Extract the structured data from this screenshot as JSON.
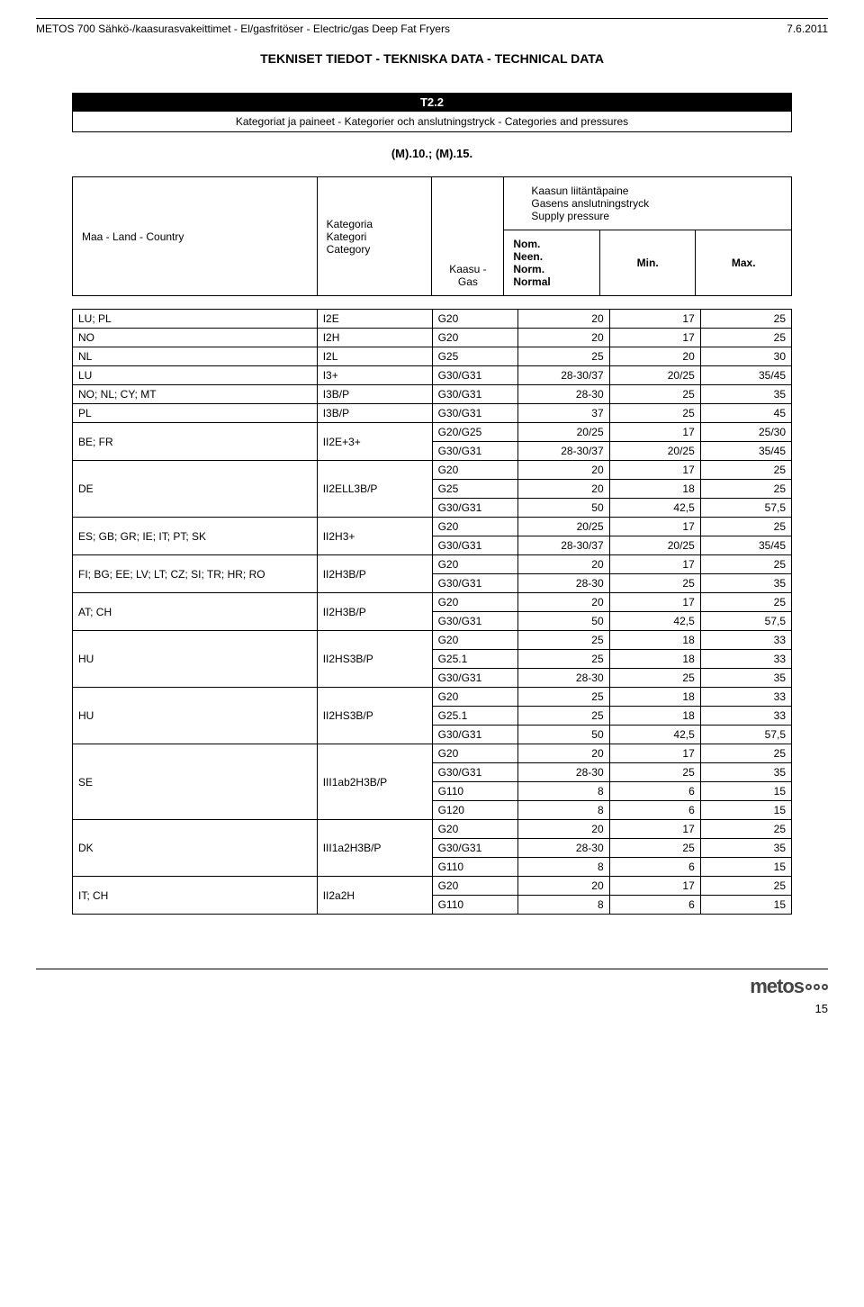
{
  "header": {
    "left": "METOS 700 Sähkö-/kaasurasvakeittimet - El/gasfritöser - Electric/gas Deep Fat Fryers",
    "right": "7.6.2011"
  },
  "section_title": "TEKNISET TIEDOT - TEKNISKA DATA - TECHNICAL DATA",
  "table_heading": {
    "code": "T2.2",
    "subtitle": "Kategoriat ja paineet - Kategorier och anslutningstryck - Categories and pressures"
  },
  "model_label": "(M).10.; (M).15.",
  "col_headers": {
    "country": "Maa - Land - Country",
    "category_lines": [
      "Kategoria",
      "Kategori",
      "Category"
    ],
    "gas_lines": [
      "Kaasu -",
      "Gas"
    ],
    "pressure_lines": [
      "Kaasun liitäntäpaine",
      "Gasens anslutningstryck",
      "Supply pressure"
    ],
    "nom_lines": [
      "Nom.",
      "Neen.",
      "Norm.",
      "Normal"
    ],
    "min": "Min.",
    "max": "Max."
  },
  "rows": [
    {
      "country": "LU; PL",
      "cat": "I2E",
      "gases": [
        [
          "G20",
          "20",
          "17",
          "25"
        ]
      ]
    },
    {
      "country": "NO",
      "cat": "I2H",
      "gases": [
        [
          "G20",
          "20",
          "17",
          "25"
        ]
      ]
    },
    {
      "country": "NL",
      "cat": "I2L",
      "gases": [
        [
          "G25",
          "25",
          "20",
          "30"
        ]
      ]
    },
    {
      "country": "LU",
      "cat": "I3+",
      "gases": [
        [
          "G30/G31",
          "28-30/37",
          "20/25",
          "35/45"
        ]
      ]
    },
    {
      "country": "NO; NL; CY; MT",
      "cat": "I3B/P",
      "gases": [
        [
          "G30/G31",
          "28-30",
          "25",
          "35"
        ]
      ]
    },
    {
      "country": "PL",
      "cat": "I3B/P",
      "gases": [
        [
          "G30/G31",
          "37",
          "25",
          "45"
        ]
      ]
    },
    {
      "country": "BE; FR",
      "cat": "II2E+3+",
      "gases": [
        [
          "G20/G25",
          "20/25",
          "17",
          "25/30"
        ],
        [
          "G30/G31",
          "28-30/37",
          "20/25",
          "35/45"
        ]
      ]
    },
    {
      "country": "DE",
      "cat": "II2ELL3B/P",
      "gases": [
        [
          "G20",
          "20",
          "17",
          "25"
        ],
        [
          "G25",
          "20",
          "18",
          "25"
        ],
        [
          "G30/G31",
          "50",
          "42,5",
          "57,5"
        ]
      ]
    },
    {
      "country": "ES; GB; GR; IE; IT; PT; SK",
      "cat": "II2H3+",
      "gases": [
        [
          "G20",
          "20/25",
          "17",
          "25"
        ],
        [
          "G30/G31",
          "28-30/37",
          "20/25",
          "35/45"
        ]
      ]
    },
    {
      "country": "FI; BG; EE; LV; LT; CZ; SI; TR; HR; RO",
      "cat": "II2H3B/P",
      "gases": [
        [
          "G20",
          "20",
          "17",
          "25"
        ],
        [
          "G30/G31",
          "28-30",
          "25",
          "35"
        ]
      ]
    },
    {
      "country": "AT; CH",
      "cat": "II2H3B/P",
      "gases": [
        [
          "G20",
          "20",
          "17",
          "25"
        ],
        [
          "G30/G31",
          "50",
          "42,5",
          "57,5"
        ]
      ]
    },
    {
      "country": "HU",
      "cat": "II2HS3B/P",
      "gases": [
        [
          "G20",
          "25",
          "18",
          "33"
        ],
        [
          "G25.1",
          "25",
          "18",
          "33"
        ],
        [
          "G30/G31",
          "28-30",
          "25",
          "35"
        ]
      ]
    },
    {
      "country": "HU",
      "cat": "II2HS3B/P",
      "gases": [
        [
          "G20",
          "25",
          "18",
          "33"
        ],
        [
          "G25.1",
          "25",
          "18",
          "33"
        ],
        [
          "G30/G31",
          "50",
          "42,5",
          "57,5"
        ]
      ]
    },
    {
      "country": "SE",
      "cat": "III1ab2H3B/P",
      "gases": [
        [
          "G20",
          "20",
          "17",
          "25"
        ],
        [
          "G30/G31",
          "28-30",
          "25",
          "35"
        ],
        [
          "G110",
          "8",
          "6",
          "15"
        ],
        [
          "G120",
          "8",
          "6",
          "15"
        ]
      ]
    },
    {
      "country": "DK",
      "cat": "III1a2H3B/P",
      "gases": [
        [
          "G20",
          "20",
          "17",
          "25"
        ],
        [
          "G30/G31",
          "28-30",
          "25",
          "35"
        ],
        [
          "G110",
          "8",
          "6",
          "15"
        ]
      ]
    },
    {
      "country": "IT; CH",
      "cat": "II2a2H",
      "gases": [
        [
          "G20",
          "20",
          "17",
          "25"
        ],
        [
          "G110",
          "8",
          "6",
          "15"
        ]
      ]
    }
  ],
  "footer": {
    "logo_text": "metos",
    "page_number": "15"
  },
  "style": {
    "bar_bg": "#000000",
    "bar_fg": "#ffffff",
    "border_color": "#000000",
    "font_family": "Arial, Helvetica, sans-serif"
  }
}
